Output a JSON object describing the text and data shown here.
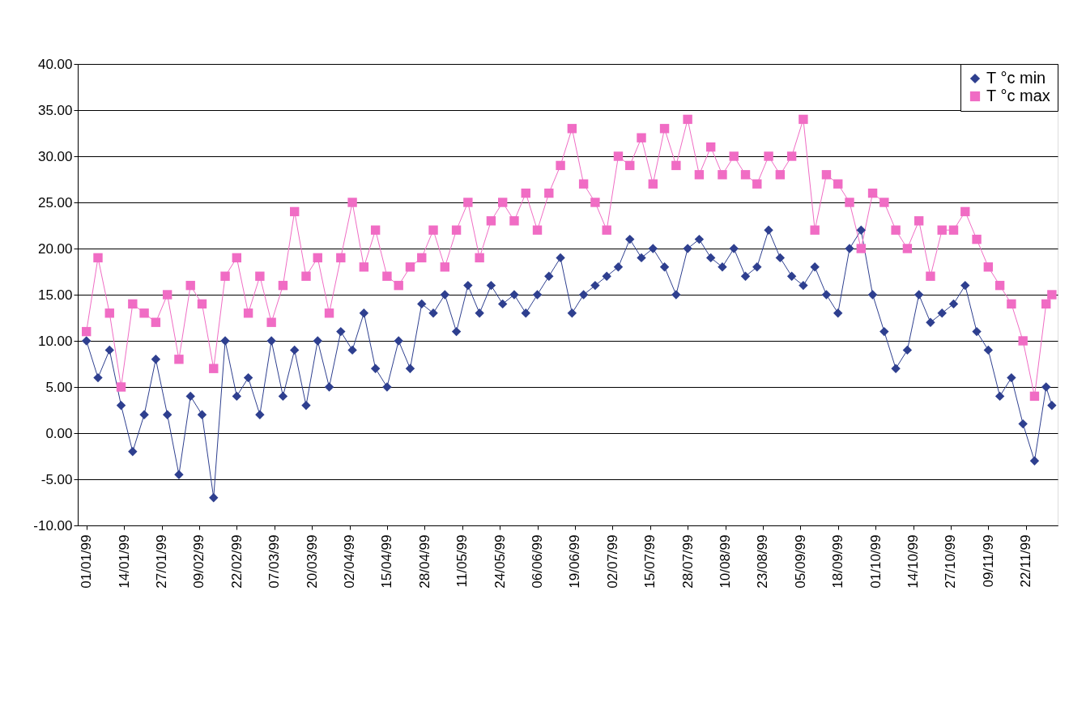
{
  "chart_data": {
    "type": "line",
    "x": [
      "1999-01-01",
      "1999-01-05",
      "1999-01-09",
      "1999-01-13",
      "1999-01-17",
      "1999-01-21",
      "1999-01-25",
      "1999-01-29",
      "1999-02-02",
      "1999-02-06",
      "1999-02-10",
      "1999-02-14",
      "1999-02-18",
      "1999-02-22",
      "1999-02-26",
      "1999-03-02",
      "1999-03-06",
      "1999-03-10",
      "1999-03-14",
      "1999-03-18",
      "1999-03-22",
      "1999-03-26",
      "1999-03-30",
      "1999-04-03",
      "1999-04-07",
      "1999-04-11",
      "1999-04-15",
      "1999-04-19",
      "1999-04-23",
      "1999-04-27",
      "1999-05-01",
      "1999-05-05",
      "1999-05-09",
      "1999-05-13",
      "1999-05-17",
      "1999-05-21",
      "1999-05-25",
      "1999-05-29",
      "1999-06-02",
      "1999-06-06",
      "1999-06-10",
      "1999-06-14",
      "1999-06-18",
      "1999-06-22",
      "1999-06-26",
      "1999-06-30",
      "1999-07-04",
      "1999-07-08",
      "1999-07-12",
      "1999-07-16",
      "1999-07-20",
      "1999-07-24",
      "1999-07-28",
      "1999-08-01",
      "1999-08-05",
      "1999-08-09",
      "1999-08-13",
      "1999-08-17",
      "1999-08-21",
      "1999-08-25",
      "1999-08-29",
      "1999-09-02",
      "1999-09-06",
      "1999-09-10",
      "1999-09-14",
      "1999-09-18",
      "1999-09-22",
      "1999-09-26",
      "1999-09-30",
      "1999-10-04",
      "1999-10-08",
      "1999-10-12",
      "1999-10-16",
      "1999-10-20",
      "1999-10-24",
      "1999-10-28",
      "1999-11-01",
      "1999-11-05",
      "1999-11-09",
      "1999-11-13",
      "1999-11-17",
      "1999-11-21",
      "1999-11-25",
      "1999-11-29",
      "1999-12-01"
    ],
    "series": [
      {
        "name": "T °c min",
        "color": "#2e3f8f",
        "marker": "diamond",
        "values": [
          10,
          6,
          9,
          3,
          -2,
          2,
          8,
          2,
          -4.5,
          4,
          2,
          -7,
          10,
          4,
          6,
          2,
          10,
          4,
          9,
          3,
          10,
          5,
          11,
          9,
          13,
          7,
          5,
          10,
          7,
          14,
          13,
          15,
          11,
          16,
          13,
          16,
          14,
          15,
          13,
          15,
          17,
          19,
          13,
          15,
          16,
          17,
          18,
          21,
          19,
          20,
          18,
          15,
          20,
          21,
          19,
          18,
          20,
          17,
          18,
          22,
          19,
          17,
          16,
          18,
          15,
          13,
          20,
          22,
          15,
          11,
          7,
          9,
          15,
          12,
          13,
          14,
          16,
          11,
          9,
          4,
          6,
          1,
          -3,
          5,
          3
        ]
      },
      {
        "name": "T °c max",
        "color": "#f06cc4",
        "marker": "square",
        "values": [
          11,
          19,
          13,
          5,
          14,
          13,
          12,
          15,
          8,
          16,
          14,
          7,
          17,
          19,
          13,
          17,
          12,
          16,
          24,
          17,
          19,
          13,
          19,
          25,
          18,
          22,
          17,
          16,
          18,
          19,
          22,
          18,
          22,
          25,
          19,
          23,
          25,
          23,
          26,
          22,
          26,
          29,
          33,
          27,
          25,
          22,
          30,
          29,
          32,
          27,
          33,
          29,
          34,
          28,
          31,
          28,
          30,
          28,
          27,
          30,
          28,
          30,
          34,
          22,
          28,
          27,
          25,
          20,
          26,
          25,
          22,
          20,
          23,
          17,
          22,
          22,
          24,
          21,
          18,
          16,
          14,
          10,
          4,
          14,
          15
        ]
      }
    ],
    "xlim": [
      "1998-12-29",
      "1999-12-03"
    ],
    "xticks": [
      {
        "value": "1999-01-01",
        "label": "01/01/99"
      },
      {
        "value": "1999-01-14",
        "label": "14/01/99"
      },
      {
        "value": "1999-01-27",
        "label": "27/01/99"
      },
      {
        "value": "1999-02-09",
        "label": "09/02/99"
      },
      {
        "value": "1999-02-22",
        "label": "22/02/99"
      },
      {
        "value": "1999-03-07",
        "label": "07/03/99"
      },
      {
        "value": "1999-03-20",
        "label": "20/03/99"
      },
      {
        "value": "1999-04-02",
        "label": "02/04/99"
      },
      {
        "value": "1999-04-15",
        "label": "15/04/99"
      },
      {
        "value": "1999-04-28",
        "label": "28/04/99"
      },
      {
        "value": "1999-05-11",
        "label": "11/05/99"
      },
      {
        "value": "1999-05-24",
        "label": "24/05/99"
      },
      {
        "value": "1999-06-06",
        "label": "06/06/99"
      },
      {
        "value": "1999-06-19",
        "label": "19/06/99"
      },
      {
        "value": "1999-07-02",
        "label": "02/07/99"
      },
      {
        "value": "1999-07-15",
        "label": "15/07/99"
      },
      {
        "value": "1999-07-28",
        "label": "28/07/99"
      },
      {
        "value": "1999-08-10",
        "label": "10/08/99"
      },
      {
        "value": "1999-08-23",
        "label": "23/08/99"
      },
      {
        "value": "1999-09-05",
        "label": "05/09/99"
      },
      {
        "value": "1999-09-18",
        "label": "18/09/99"
      },
      {
        "value": "1999-10-01",
        "label": "01/10/99"
      },
      {
        "value": "1999-10-14",
        "label": "14/10/99"
      },
      {
        "value": "1999-10-27",
        "label": "27/10/99"
      },
      {
        "value": "1999-11-09",
        "label": "09/11/99"
      },
      {
        "value": "1999-11-22",
        "label": "22/11/99"
      }
    ],
    "ylim": [
      -10,
      40
    ],
    "yticks": [
      {
        "value": -10,
        "label": "-10.00"
      },
      {
        "value": -5,
        "label": "-5.00"
      },
      {
        "value": 0,
        "label": "0.00"
      },
      {
        "value": 5,
        "label": "5.00"
      },
      {
        "value": 10,
        "label": "10.00"
      },
      {
        "value": 15,
        "label": "15.00"
      },
      {
        "value": 20,
        "label": "20.00"
      },
      {
        "value": 25,
        "label": "25.00"
      },
      {
        "value": 30,
        "label": "30.00"
      },
      {
        "value": 35,
        "label": "35.00"
      },
      {
        "value": 40,
        "label": "40.00"
      }
    ],
    "grid": "y",
    "legend": "top right",
    "line_style": "solid"
  }
}
